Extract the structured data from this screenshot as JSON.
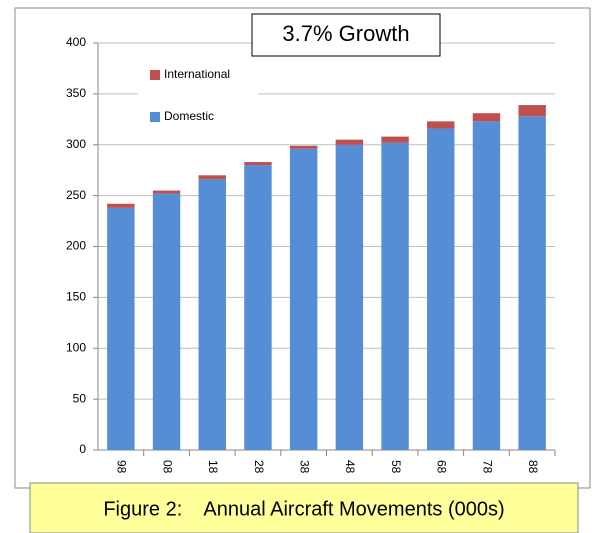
{
  "chart_data": {
    "type": "stacked_bar",
    "annotation": "3.7% Growth",
    "categories": [
      "98",
      "08",
      "18",
      "28",
      "38",
      "48",
      "58",
      "68",
      "78",
      "88"
    ],
    "series": [
      {
        "name": "Domestic",
        "color": "#558ed5",
        "values": [
          238,
          252,
          266,
          280,
          296,
          300,
          302,
          316,
          323,
          328
        ]
      },
      {
        "name": "International",
        "color": "#c0504d",
        "values": [
          4,
          3,
          4,
          3,
          3,
          5,
          6,
          7,
          8,
          11
        ]
      }
    ],
    "ylim": [
      0,
      400
    ],
    "yticks": [
      0,
      50,
      100,
      150,
      200,
      250,
      300,
      350,
      400
    ],
    "grid": true
  },
  "caption": "Figure 2:    Annual Aircraft Movements (000s)"
}
